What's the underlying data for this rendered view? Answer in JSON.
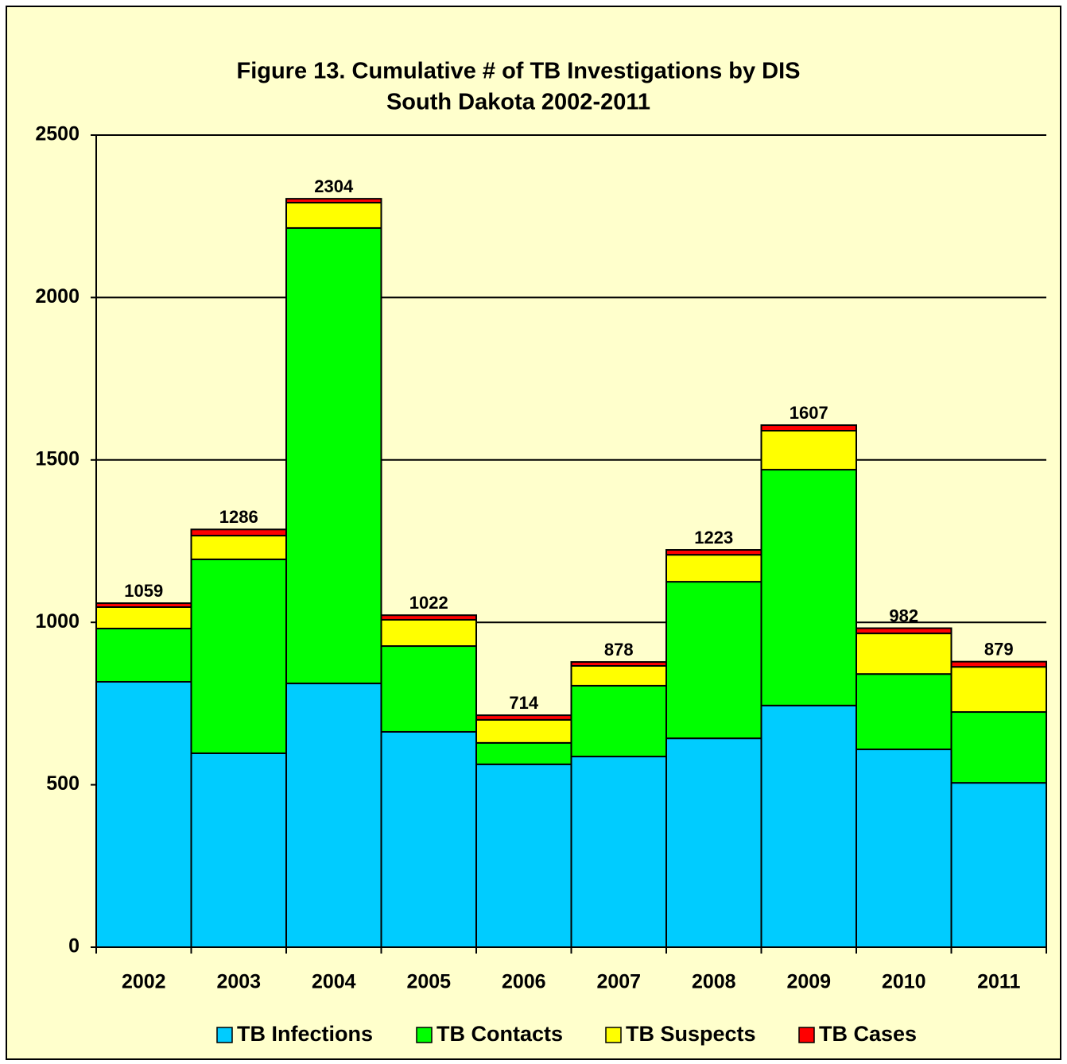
{
  "chart_data": {
    "type": "stacked_bar",
    "title": "Figure 13.  Cumulative # of TB Investigations by DIS",
    "subtitle": "South Dakota 2002-2011",
    "categories": [
      "2002",
      "2003",
      "2004",
      "2005",
      "2006",
      "2007",
      "2008",
      "2009",
      "2010",
      "2011"
    ],
    "series": [
      {
        "name": "TB Infections",
        "color": "#00ccff",
        "values": [
          817,
          597,
          812,
          663,
          563,
          587,
          643,
          744,
          609,
          506
        ]
      },
      {
        "name": "TB Contacts",
        "color": "#00ff00",
        "values": [
          164,
          597,
          1402,
          264,
          66,
          218,
          482,
          726,
          232,
          218
        ]
      },
      {
        "name": "TB Suspects",
        "color": "#ffff00",
        "values": [
          66,
          73,
          78,
          81,
          71,
          61,
          83,
          120,
          125,
          139
        ]
      },
      {
        "name": "TB Cases",
        "color": "#ff0000",
        "values": [
          12,
          19,
          12,
          14,
          14,
          12,
          15,
          17,
          16,
          16
        ]
      }
    ],
    "totals": [
      1059,
      1286,
      2304,
      1022,
      714,
      878,
      1223,
      1607,
      982,
      879
    ],
    "ylim": [
      0,
      2500
    ],
    "yticks": [
      0,
      500,
      1000,
      1500,
      2000,
      2500
    ],
    "grid": true,
    "legend": "bottom"
  }
}
